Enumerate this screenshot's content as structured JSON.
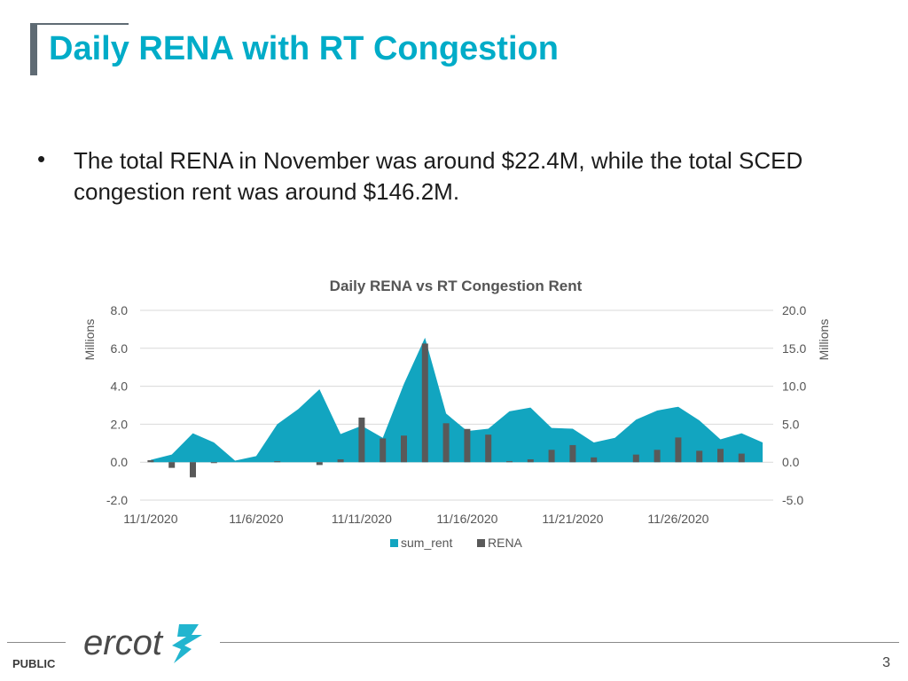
{
  "slide": {
    "title": "Daily RENA with RT Congestion",
    "bullet_symbol": "•",
    "bullet_text": "The total RENA in November was around $22.4M, while the total SCED congestion rent was around $146.2M."
  },
  "footer": {
    "classification": "PUBLIC",
    "page_number": "3",
    "logo_text": "ercot",
    "logo_icon": "ercot-lightning-icon"
  },
  "colors": {
    "title": "#00acc8",
    "area": "#12a5c0",
    "bar": "#595959",
    "axis_text": "#555555",
    "grid": "#d9d9d9"
  },
  "chart_data": {
    "type": "bar",
    "title": "Daily RENA vs RT Congestion Rent",
    "x": [
      "11/1/2020",
      "11/2/2020",
      "11/3/2020",
      "11/4/2020",
      "11/5/2020",
      "11/6/2020",
      "11/7/2020",
      "11/8/2020",
      "11/9/2020",
      "11/10/2020",
      "11/11/2020",
      "11/12/2020",
      "11/13/2020",
      "11/14/2020",
      "11/15/2020",
      "11/16/2020",
      "11/17/2020",
      "11/18/2020",
      "11/19/2020",
      "11/20/2020",
      "11/21/2020",
      "11/22/2020",
      "11/23/2020",
      "11/24/2020",
      "11/25/2020",
      "11/26/2020",
      "11/27/2020",
      "11/28/2020",
      "11/29/2020",
      "11/30/2020"
    ],
    "x_tick_labels": [
      "11/1/2020",
      "11/6/2020",
      "11/11/2020",
      "11/16/2020",
      "11/21/2020",
      "11/26/2020"
    ],
    "series": [
      {
        "name": "sum_rent",
        "type": "area",
        "axis": "right",
        "values": [
          0.3,
          1.0,
          3.8,
          2.6,
          0.2,
          0.8,
          5.0,
          7.0,
          9.6,
          3.7,
          4.8,
          3.2,
          10.3,
          16.4,
          6.4,
          4.1,
          4.4,
          6.7,
          7.2,
          4.5,
          4.4,
          2.6,
          3.2,
          5.6,
          6.8,
          7.3,
          5.5,
          3.0,
          3.8,
          2.6
        ]
      },
      {
        "name": "RENA",
        "type": "bar",
        "axis": "left",
        "values": [
          0.1,
          -0.3,
          -0.8,
          -0.05,
          0.0,
          0.0,
          0.05,
          0.0,
          -0.15,
          0.15,
          2.35,
          1.25,
          1.4,
          6.25,
          2.05,
          1.75,
          1.45,
          0.05,
          0.15,
          0.65,
          0.9,
          0.25,
          0.0,
          0.4,
          0.65,
          1.3,
          0.6,
          0.7,
          0.45,
          0.0
        ]
      }
    ],
    "left_axis": {
      "label": "Millions",
      "ylim": [
        -2.0,
        8.0
      ],
      "ticks": [
        "8.0",
        "6.0",
        "4.0",
        "2.0",
        "0.0",
        "-2.0"
      ]
    },
    "right_axis": {
      "label": "Millions",
      "ylim": [
        -5.0,
        20.0
      ],
      "ticks": [
        "20.0",
        "15.0",
        "10.0",
        "5.0",
        "0.0",
        "-5.0"
      ]
    },
    "grid": true,
    "legend_position": "bottom"
  }
}
